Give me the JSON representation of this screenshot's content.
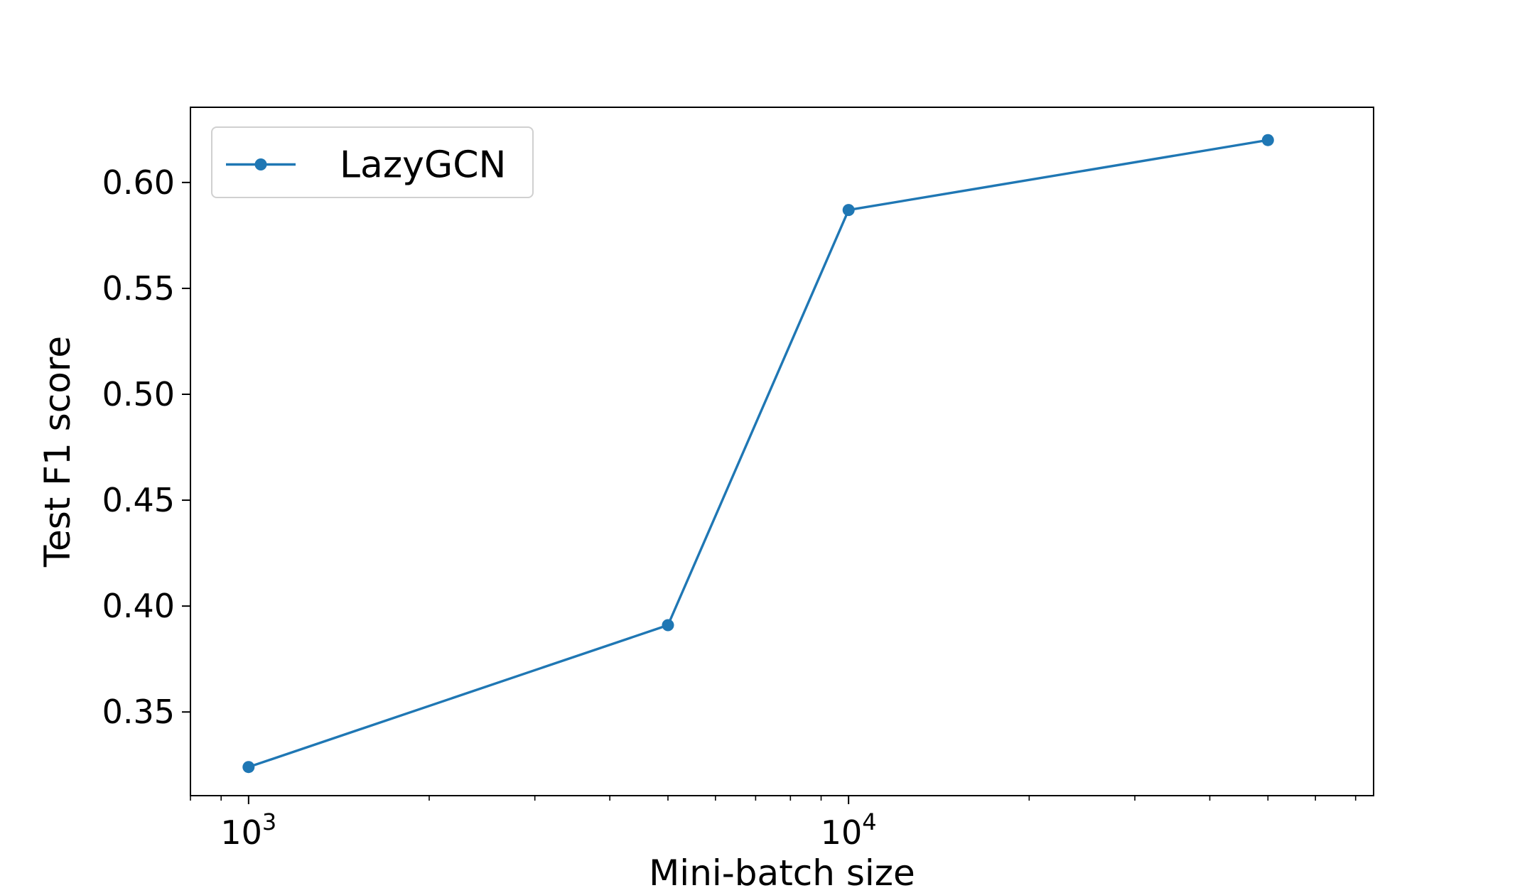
{
  "chart_data": {
    "type": "line",
    "xscale": "log",
    "xlabel": "Mini-batch size",
    "ylabel": "Test F1 score",
    "xlim": [
      800,
      75000
    ],
    "ylim": [
      0.3105,
      0.6355
    ],
    "xticks": [
      {
        "value": 1000,
        "base": "10",
        "exp": "3"
      },
      {
        "value": 10000,
        "base": "10",
        "exp": "4"
      }
    ],
    "yticks": [
      {
        "value": 0.35,
        "label": "0.35"
      },
      {
        "value": 0.4,
        "label": "0.40"
      },
      {
        "value": 0.45,
        "label": "0.45"
      },
      {
        "value": 0.5,
        "label": "0.50"
      },
      {
        "value": 0.55,
        "label": "0.55"
      },
      {
        "value": 0.6,
        "label": "0.60"
      }
    ],
    "series": [
      {
        "name": "LazyGCN",
        "color": "#1f77b4",
        "marker": "circle",
        "x": [
          1000,
          5000,
          10000,
          50000
        ],
        "y": [
          0.324,
          0.391,
          0.587,
          0.62
        ]
      }
    ],
    "legend": {
      "position": "top-left"
    },
    "grid": false
  }
}
